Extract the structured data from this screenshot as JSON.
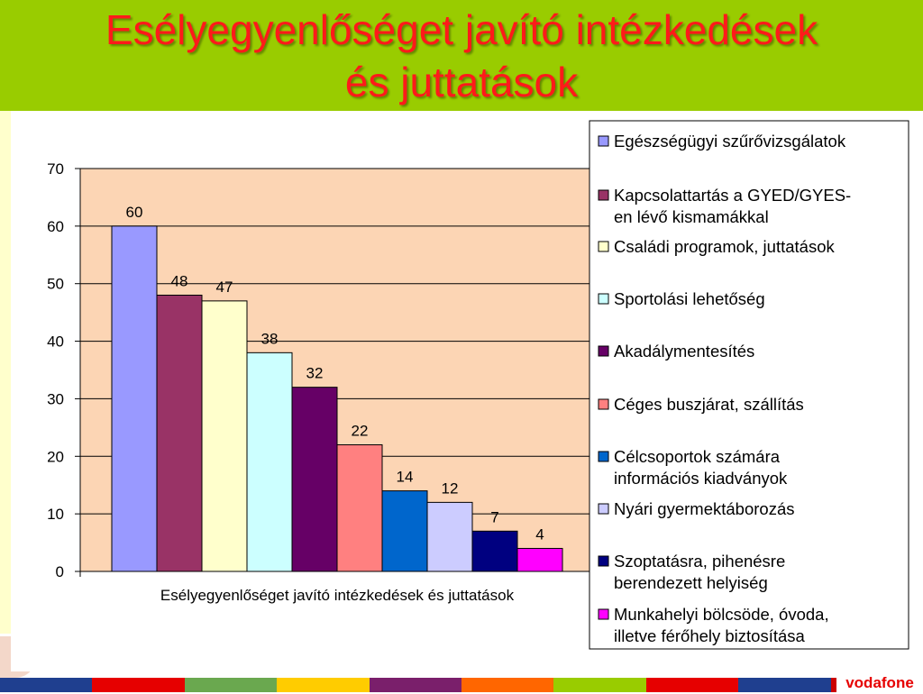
{
  "slide": {
    "title_line1": "Esélyegyenlőséget javító intézkedések",
    "title_line2": "és juttatások",
    "title_color": "#ff1a1a",
    "header_color": "#99cc00",
    "brand_logo": "vodafone",
    "footer_colors": [
      "#1f3f8f",
      "#e60000",
      "#6aa84f",
      "#ffcc00",
      "#7a1f6b",
      "#ff6600",
      "#99cc00",
      "#e60000",
      "#1f3f8f",
      "#cc0000"
    ]
  },
  "chart_data": {
    "type": "bar",
    "categories": [
      "Esélyegyenlőséget javító intézkedések és juttatások"
    ],
    "xlabel": "Esélyegyenlőséget javító intézkedések és juttatások",
    "ylim": [
      0,
      70
    ],
    "yticks": [
      0,
      10,
      20,
      30,
      40,
      50,
      60,
      70
    ],
    "grid": true,
    "plot_background": "#fcd5b4",
    "legend_position": "right",
    "series": [
      {
        "name": "Egészségügyi szűrővizsgálatok",
        "value": 60,
        "color": "#9999ff"
      },
      {
        "name": "Kapcsolattartás a GYED/GYES-en lévő kismamákkal",
        "value": 48,
        "color": "#993366"
      },
      {
        "name": "Családi programok, juttatások",
        "value": 47,
        "color": "#ffffcc"
      },
      {
        "name": "Sportolási lehetőség",
        "value": 38,
        "color": "#ccffff"
      },
      {
        "name": "Akadálymentesítés",
        "value": 32,
        "color": "#660066"
      },
      {
        "name": "Céges buszjárat, szállítás",
        "value": 22,
        "color": "#ff8080"
      },
      {
        "name": "Célcsoportok számára információs kiadványok",
        "value": 14,
        "color": "#0066cc"
      },
      {
        "name": "Nyári gyermektáborozás",
        "value": 12,
        "color": "#ccccff"
      },
      {
        "name": "Szoptatásra, pihenésre berendezett helyiség",
        "value": 7,
        "color": "#000080"
      },
      {
        "name": "Munkahelyi bölcsöde, óvoda, illetve férőhely biztosítása",
        "value": 4,
        "color": "#ff00ff"
      }
    ]
  }
}
